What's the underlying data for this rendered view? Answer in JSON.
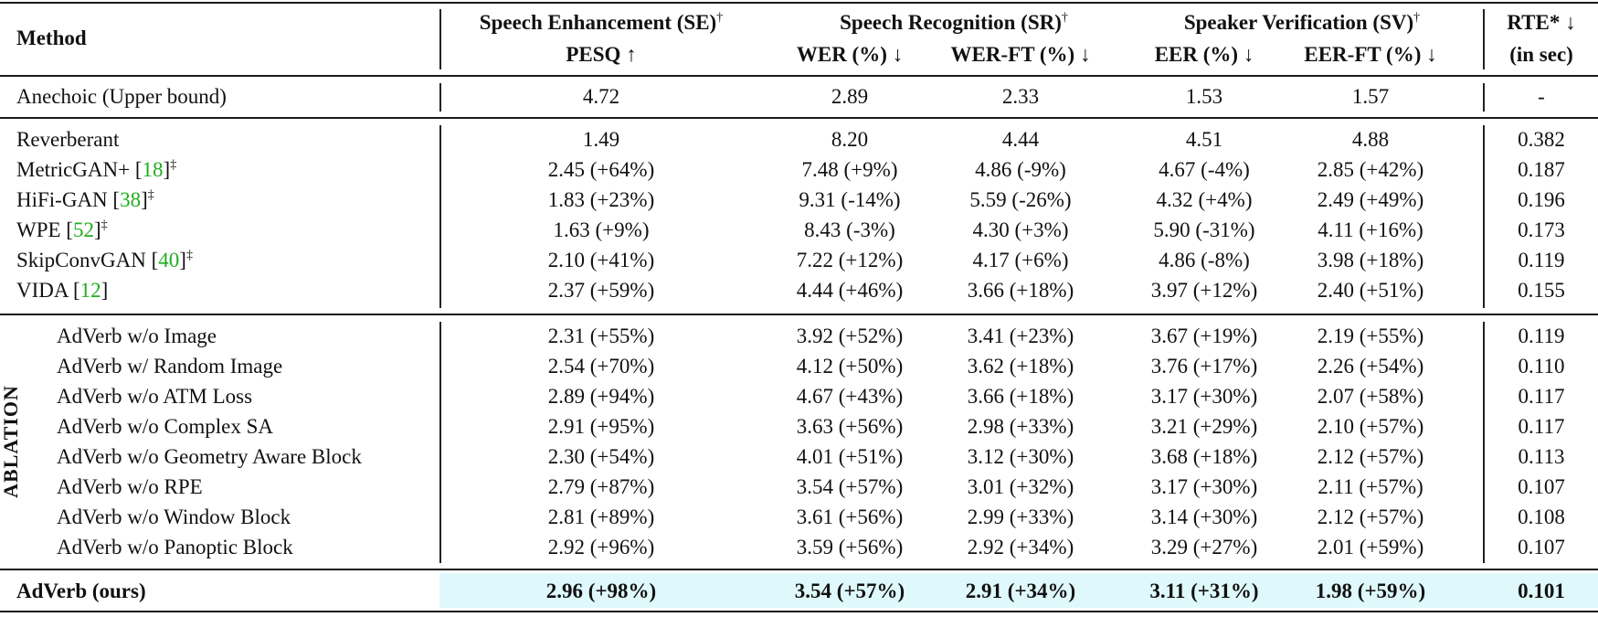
{
  "header": {
    "method": "Method",
    "se_group": "Speech Enhancement (SE)",
    "sr_group": "Speech Recognition (SR)",
    "sv_group": "Speaker Verification (SV)",
    "dagger": "†",
    "rte": "RTE* ↓",
    "rte_unit": "(in sec)",
    "pesq": "PESQ ↑",
    "wer": "WER (%) ↓",
    "wer_ft": "WER-FT (%) ↓",
    "eer": "EER (%) ↓",
    "eer_ft": "EER-FT (%) ↓"
  },
  "ablation_label": "ABLATION",
  "upper_bound": {
    "name": "Anechoic (Upper bound)",
    "pesq": "4.72",
    "wer": "2.89",
    "wer_ft": "2.33",
    "eer": "1.53",
    "eer_ft": "1.57",
    "rte": "-"
  },
  "baselines": [
    {
      "name": "Reverberant",
      "ref": "",
      "mark": "",
      "pesq": "1.49",
      "wer": "8.20",
      "wer_ft": "4.44",
      "eer": "4.51",
      "eer_ft": "4.88",
      "rte": "0.382"
    },
    {
      "name": "MetricGAN+ [",
      "ref": "18",
      "mark": "]‡",
      "pesq": "2.45 (+64%)",
      "wer": "7.48 (+9%)",
      "wer_ft": "4.86 (-9%)",
      "eer": "4.67 (-4%)",
      "eer_ft": "2.85 (+42%)",
      "rte": "0.187"
    },
    {
      "name": "HiFi-GAN [",
      "ref": "38",
      "mark": "]‡",
      "pesq": "1.83 (+23%)",
      "wer": "9.31 (-14%)",
      "wer_ft": "5.59 (-26%)",
      "eer": "4.32 (+4%)",
      "eer_ft": "2.49 (+49%)",
      "rte": "0.196"
    },
    {
      "name": "WPE [",
      "ref": "52",
      "mark": "]‡",
      "pesq": "1.63 (+9%)",
      "wer": "8.43 (-3%)",
      "wer_ft": "4.30 (+3%)",
      "eer": "5.90 (-31%)",
      "eer_ft": "4.11 (+16%)",
      "rte": "0.173"
    },
    {
      "name": "SkipConvGAN [",
      "ref": "40",
      "mark": "]‡",
      "pesq": "2.10 (+41%)",
      "wer": "7.22 (+12%)",
      "wer_ft": "4.17 (+6%)",
      "eer": "4.86 (-8%)",
      "eer_ft": "3.98 (+18%)",
      "rte": "0.119"
    },
    {
      "name": "VIDA [",
      "ref": "12",
      "mark": "]",
      "pesq": "2.37 (+59%)",
      "wer": "4.44 (+46%)",
      "wer_ft": "3.66 (+18%)",
      "eer": "3.97 (+12%)",
      "eer_ft": "2.40 (+51%)",
      "rte": "0.155"
    }
  ],
  "ablations": [
    {
      "name": "AdVerb w/o Image",
      "pesq": "2.31 (+55%)",
      "wer": "3.92 (+52%)",
      "wer_ft": "3.41 (+23%)",
      "eer": "3.67 (+19%)",
      "eer_ft": "2.19 (+55%)",
      "rte": "0.119"
    },
    {
      "name": "AdVerb w/ Random Image",
      "pesq": "2.54 (+70%)",
      "wer": "4.12 (+50%)",
      "wer_ft": "3.62 (+18%)",
      "eer": "3.76 (+17%)",
      "eer_ft": "2.26 (+54%)",
      "rte": "0.110"
    },
    {
      "name": "AdVerb w/o ATM Loss",
      "pesq": "2.89 (+94%)",
      "wer": "4.67 (+43%)",
      "wer_ft": "3.66 (+18%)",
      "eer": "3.17 (+30%)",
      "eer_ft": "2.07 (+58%)",
      "rte": "0.117"
    },
    {
      "name": "AdVerb w/o Complex SA",
      "pesq": "2.91 (+95%)",
      "wer": "3.63 (+56%)",
      "wer_ft": "2.98 (+33%)",
      "eer": "3.21 (+29%)",
      "eer_ft": "2.10 (+57%)",
      "rte": "0.117"
    },
    {
      "name": "AdVerb w/o Geometry Aware Block",
      "pesq": "2.30 (+54%)",
      "wer": "4.01 (+51%)",
      "wer_ft": "3.12 (+30%)",
      "eer": "3.68 (+18%)",
      "eer_ft": "2.12 (+57%)",
      "rte": "0.113"
    },
    {
      "name": "AdVerb w/o RPE",
      "pesq": "2.79 (+87%)",
      "wer": "3.54 (+57%)",
      "wer_ft": "3.01 (+32%)",
      "eer": "3.17 (+30%)",
      "eer_ft": "2.11 (+57%)",
      "rte": "0.107"
    },
    {
      "name": "AdVerb w/o Window Block",
      "pesq": "2.81 (+89%)",
      "wer": "3.61 (+56%)",
      "wer_ft": "2.99 (+33%)",
      "eer": "3.14 (+30%)",
      "eer_ft": "2.12 (+57%)",
      "rte": "0.108"
    },
    {
      "name": "AdVerb w/o Panoptic Block",
      "pesq": "2.92 (+96%)",
      "wer": "3.59 (+56%)",
      "wer_ft": "2.92 (+34%)",
      "eer": "3.29 (+27%)",
      "eer_ft": "2.01 (+59%)",
      "rte": "0.107"
    }
  ],
  "ours": {
    "name": "AdVerb (ours)",
    "pesq": "2.96 (+98%)",
    "wer": "3.54 (+57%)",
    "wer_ft": "2.91 (+34%)",
    "eer": "3.11 (+31%)",
    "eer_ft": "1.98 (+59%)",
    "rte": "0.101"
  },
  "colors": {
    "ref_link": "#1fae1f",
    "highlight": "#dff8fb"
  }
}
